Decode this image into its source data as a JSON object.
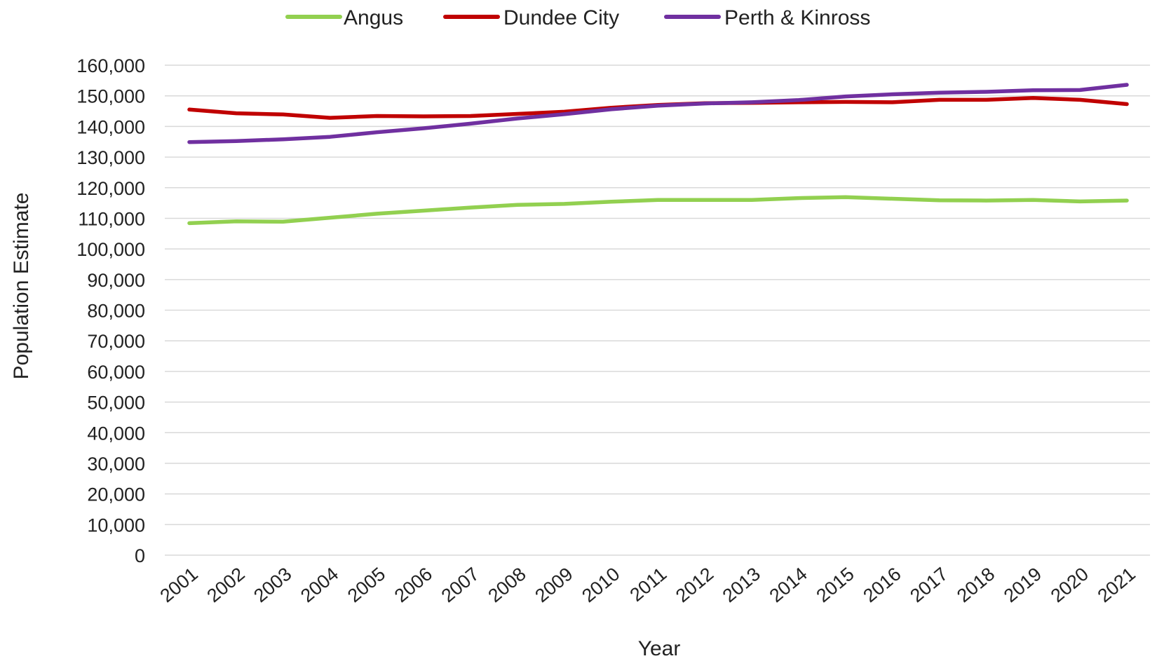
{
  "chart_data": {
    "type": "line",
    "title": "",
    "xlabel": "Year",
    "ylabel": "Population Estimate",
    "ylim": [
      0,
      160000
    ],
    "ytick_step": 10000,
    "grid": true,
    "legend_position": "top",
    "x": [
      "2001",
      "2002",
      "2003",
      "2004",
      "2005",
      "2006",
      "2007",
      "2008",
      "2009",
      "2010",
      "2011",
      "2012",
      "2013",
      "2014",
      "2015",
      "2016",
      "2017",
      "2018",
      "2019",
      "2020",
      "2021"
    ],
    "series": [
      {
        "name": "Angus",
        "color": "#92d050",
        "values": [
          108400,
          109000,
          108900,
          110200,
          111500,
          112500,
          113500,
          114400,
          114700,
          115400,
          116000,
          116000,
          116000,
          116600,
          116900,
          116400,
          115900,
          115800,
          116000,
          115500,
          115800
        ]
      },
      {
        "name": "Dundee City",
        "color": "#c00000",
        "values": [
          145500,
          144300,
          143900,
          142800,
          143400,
          143300,
          143400,
          144100,
          144800,
          146100,
          147000,
          147600,
          147700,
          147900,
          148000,
          147900,
          148700,
          148700,
          149300,
          148700,
          147300
        ]
      },
      {
        "name": "Perth & Kinross",
        "color": "#7030a0",
        "values": [
          134900,
          135200,
          135800,
          136600,
          138100,
          139400,
          140900,
          142600,
          144000,
          145600,
          146800,
          147500,
          147900,
          148600,
          149800,
          150500,
          151000,
          151300,
          151800,
          151900,
          153600
        ]
      }
    ]
  }
}
